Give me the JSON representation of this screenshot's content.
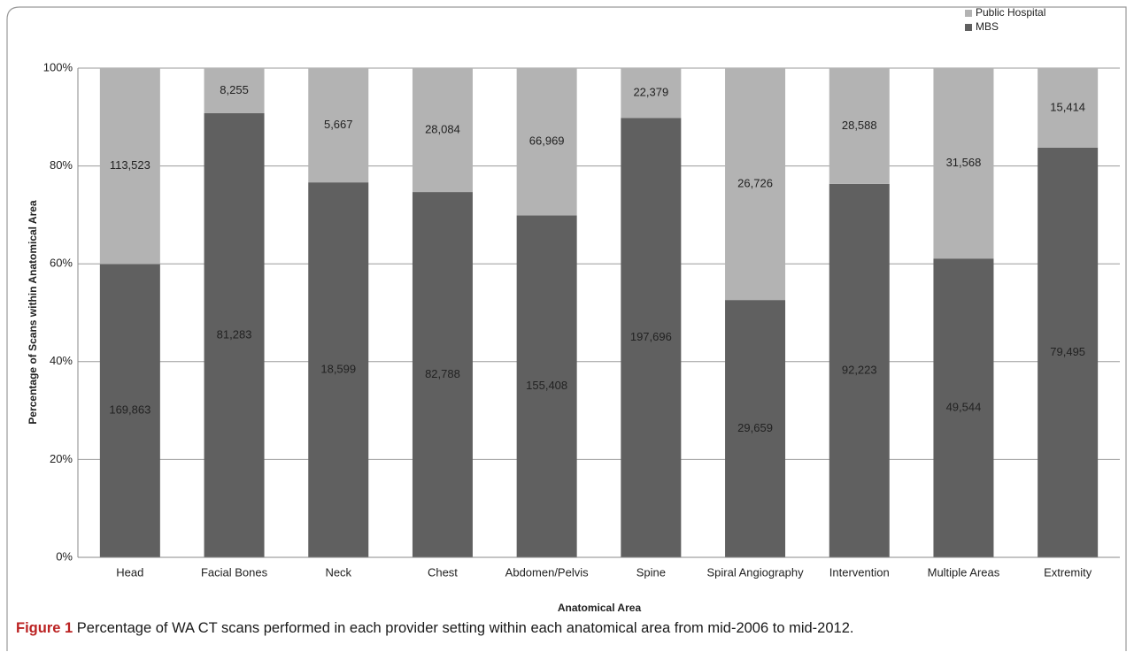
{
  "chart_data": {
    "type": "stacked100",
    "x_label": "Anatomical Area",
    "y_label": "Percentage of Scans within Anatomical Area",
    "categories": [
      "Head",
      "Facial Bones",
      "Neck",
      "Chest",
      "Abdomen/Pelvis",
      "Spine",
      "Spiral Angiography",
      "Intervention",
      "Multiple Areas",
      "Extremity"
    ],
    "series": [
      {
        "name": "MBS",
        "color": "#606060",
        "values": [
          169863,
          81283,
          18599,
          82788,
          155408,
          197696,
          29659,
          92223,
          49544,
          79495
        ],
        "value_labels": [
          "169,863",
          "81,283",
          "18,599",
          "82,788",
          "155,408",
          "197,696",
          "29,659",
          "92,223",
          "49,544",
          "79,495"
        ]
      },
      {
        "name": "Public Hospital",
        "color": "#b3b3b3",
        "values": [
          113523,
          8255,
          5667,
          28084,
          66969,
          22379,
          26726,
          28588,
          31568,
          15414
        ],
        "value_labels": [
          "113,523",
          "8,255",
          "5,667",
          "28,084",
          "66,969",
          "22,379",
          "26,726",
          "28,588",
          "31,568",
          "15,414"
        ]
      }
    ],
    "ylim": [
      0,
      100
    ],
    "yticks": [
      {
        "value": 0,
        "label": "0%"
      },
      {
        "value": 20,
        "label": "20%"
      },
      {
        "value": 40,
        "label": "40%"
      },
      {
        "value": 60,
        "label": "60%"
      },
      {
        "value": 80,
        "label": "80%"
      },
      {
        "value": 100,
        "label": "100%"
      }
    ],
    "grid": true,
    "legend": "top-right"
  },
  "caption": {
    "label": "Figure 1",
    "text": " Percentage of WA CT scans performed in each provider setting within each anatomical area from mid-2006 to mid-2012."
  }
}
